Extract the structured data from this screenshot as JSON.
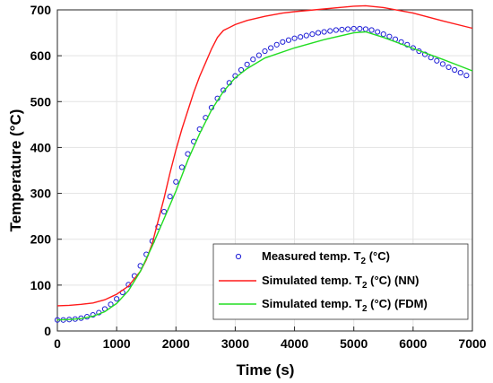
{
  "chart_data": {
    "type": "line",
    "xlabel": "Time (s)",
    "ylabel": "Temperature (°C)",
    "xlim": [
      0,
      7000
    ],
    "ylim": [
      0,
      700
    ],
    "xticks": [
      0,
      1000,
      2000,
      3000,
      4000,
      5000,
      6000,
      7000
    ],
    "yticks": [
      0,
      100,
      200,
      300,
      400,
      500,
      600,
      700
    ],
    "grid": true,
    "legend_position": "bottom-right",
    "series": [
      {
        "name": "Measured temp. T",
        "name_subscript": "2",
        "name_suffix": " (°C)",
        "style": "circles",
        "color": "#1f1fd6",
        "x": [
          0,
          100,
          200,
          300,
          400,
          500,
          600,
          700,
          800,
          900,
          1000,
          1100,
          1200,
          1300,
          1400,
          1500,
          1600,
          1700,
          1800,
          1900,
          2000,
          2100,
          2200,
          2300,
          2400,
          2500,
          2600,
          2700,
          2800,
          2900,
          3000,
          3100,
          3200,
          3300,
          3400,
          3500,
          3600,
          3700,
          3800,
          3900,
          4000,
          4100,
          4200,
          4300,
          4400,
          4500,
          4600,
          4700,
          4800,
          4900,
          5000,
          5100,
          5200,
          5300,
          5400,
          5500,
          5600,
          5700,
          5800,
          5900,
          6000,
          6100,
          6200,
          6300,
          6400,
          6500,
          6600,
          6700,
          6800,
          6900
        ],
        "y": [
          24,
          24,
          25,
          26,
          28,
          31,
          35,
          40,
          48,
          58,
          70,
          84,
          101,
          120,
          142,
          167,
          196,
          227,
          260,
          293,
          325,
          357,
          386,
          413,
          440,
          465,
          487,
          507,
          525,
          541,
          556,
          569,
          581,
          592,
          601,
          610,
          617,
          624,
          630,
          634,
          638,
          641,
          644,
          647,
          650,
          652,
          654,
          656,
          657,
          658,
          659,
          659,
          658,
          656,
          652,
          647,
          642,
          636,
          630,
          624,
          617,
          610,
          603,
          596,
          589,
          582,
          575,
          569,
          563,
          557
        ]
      },
      {
        "name": "Simulated temp. T",
        "name_subscript": "2",
        "name_suffix": " (°C) (NN)",
        "style": "line",
        "color": "#ff1a1a",
        "x": [
          0,
          200,
          400,
          600,
          800,
          1000,
          1200,
          1400,
          1500,
          1600,
          1700,
          1800,
          1900,
          2000,
          2100,
          2200,
          2300,
          2400,
          2500,
          2600,
          2700,
          2800,
          3000,
          3200,
          3500,
          3800,
          4000,
          4500,
          5000,
          5200,
          5500,
          6000,
          6500,
          7000
        ],
        "y": [
          55,
          56,
          58,
          61,
          68,
          80,
          98,
          130,
          155,
          190,
          240,
          290,
          345,
          395,
          440,
          480,
          520,
          555,
          585,
          615,
          640,
          655,
          668,
          677,
          686,
          693,
          696,
          702,
          708,
          709,
          705,
          693,
          676,
          660
        ]
      },
      {
        "name": "Simulated temp. T",
        "name_subscript": "2",
        "name_suffix": " (°C) (FDM)",
        "style": "line",
        "color": "#22dd22",
        "x": [
          0,
          200,
          400,
          600,
          800,
          1000,
          1200,
          1400,
          1600,
          1800,
          2000,
          2200,
          2400,
          2600,
          2800,
          3000,
          3200,
          3500,
          4000,
          4500,
          5000,
          5200,
          5500,
          6000,
          6500,
          7000
        ],
        "y": [
          24,
          25,
          27,
          32,
          42,
          60,
          88,
          130,
          185,
          245,
          305,
          372,
          430,
          482,
          522,
          552,
          572,
          595,
          617,
          635,
          650,
          652,
          640,
          616,
          592,
          567
        ]
      }
    ]
  }
}
